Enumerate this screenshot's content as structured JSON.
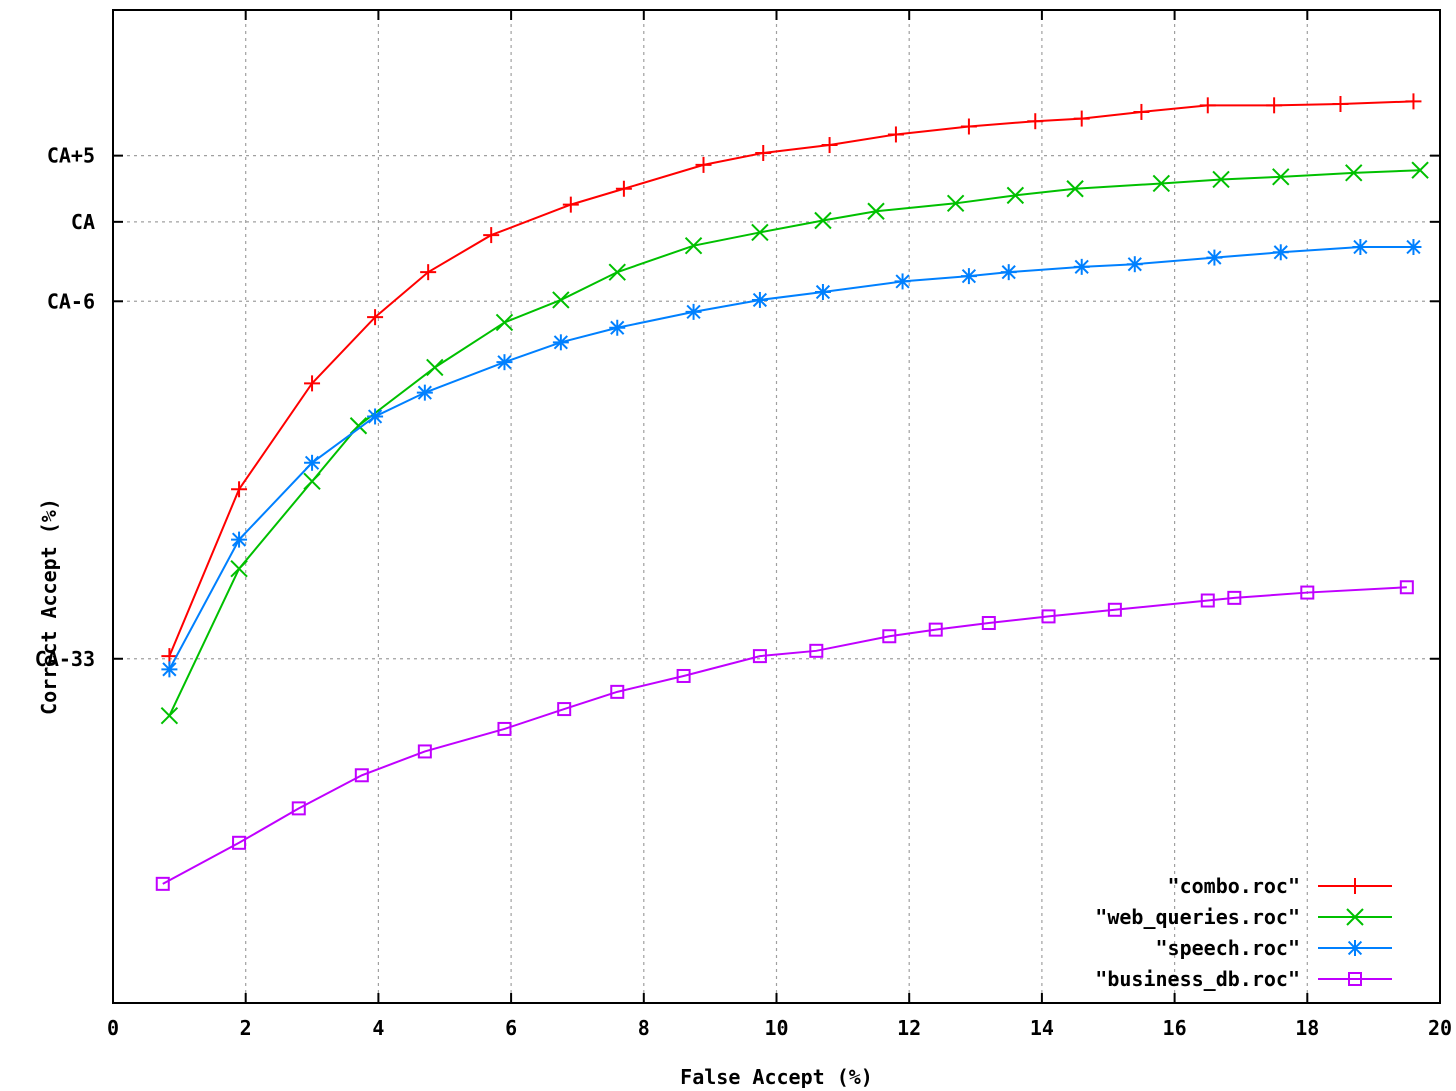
{
  "chart_data": {
    "type": "line",
    "title": "",
    "xlabel": "False Accept (%)",
    "ylabel": "Correct Accept (%)",
    "xlim": [
      0,
      20
    ],
    "x_ticks": [
      0,
      2,
      4,
      6,
      8,
      10,
      12,
      14,
      16,
      18,
      20
    ],
    "y_ticks": [
      {
        "value": -33,
        "label": "CA-33"
      },
      {
        "value": -6,
        "label": "CA-6"
      },
      {
        "value": 0,
        "label": "CA"
      },
      {
        "value": 5,
        "label": "CA+5"
      }
    ],
    "ylim": [
      -59,
      16
    ],
    "grid": true,
    "legend_position": "bottom-right",
    "series": [
      {
        "name": "\"combo.roc\"",
        "color": "#ff0000",
        "marker": "plus",
        "x": [
          0.85,
          1.9,
          3.0,
          3.95,
          4.75,
          5.7,
          6.9,
          7.7,
          8.9,
          9.8,
          10.8,
          11.8,
          12.9,
          13.9,
          14.6,
          15.5,
          16.5,
          17.5,
          18.5,
          19.6
        ],
        "y": [
          -32.8,
          -20.2,
          -12.2,
          -7.2,
          -3.8,
          -1.0,
          1.3,
          2.5,
          4.3,
          5.2,
          5.8,
          6.6,
          7.2,
          7.6,
          7.8,
          8.3,
          8.8,
          8.8,
          8.9,
          9.1
        ]
      },
      {
        "name": "\"web_queries.roc\"",
        "color": "#00c000",
        "marker": "cross",
        "x": [
          0.85,
          1.9,
          3.0,
          3.7,
          4.85,
          5.9,
          6.75,
          7.6,
          8.75,
          9.75,
          10.7,
          11.5,
          12.7,
          13.6,
          14.5,
          15.8,
          16.7,
          17.6,
          18.7,
          19.7
        ],
        "y": [
          -37.3,
          -26.2,
          -19.6,
          -15.4,
          -11.0,
          -7.6,
          -5.9,
          -3.8,
          -1.8,
          -0.8,
          0.1,
          0.8,
          1.4,
          2.0,
          2.5,
          2.9,
          3.2,
          3.4,
          3.7,
          3.9
        ]
      },
      {
        "name": "\"speech.roc\"",
        "color": "#0080ff",
        "marker": "star",
        "x": [
          0.85,
          1.9,
          3.0,
          3.95,
          4.7,
          5.9,
          6.75,
          7.6,
          8.75,
          9.75,
          10.7,
          11.9,
          12.9,
          13.5,
          14.6,
          15.4,
          16.6,
          17.6,
          18.8,
          19.6
        ],
        "y": [
          -33.8,
          -24.0,
          -18.2,
          -14.7,
          -12.9,
          -10.6,
          -9.1,
          -8.0,
          -6.8,
          -5.9,
          -5.3,
          -4.5,
          -4.1,
          -3.8,
          -3.4,
          -3.2,
          -2.7,
          -2.3,
          -1.9,
          -1.9
        ]
      },
      {
        "name": "\"business_db.roc\"",
        "color": "#c000ff",
        "marker": "square",
        "x": [
          0.75,
          1.9,
          2.8,
          3.75,
          4.7,
          5.9,
          6.8,
          7.6,
          8.6,
          9.75,
          10.6,
          11.7,
          12.4,
          13.2,
          14.1,
          15.1,
          16.5,
          16.9,
          18.0,
          19.5
        ],
        "y": [
          -50.0,
          -46.9,
          -44.3,
          -41.8,
          -40.0,
          -38.3,
          -36.8,
          -35.5,
          -34.3,
          -32.8,
          -32.4,
          -31.3,
          -30.8,
          -30.3,
          -29.8,
          -29.3,
          -28.6,
          -28.4,
          -28.0,
          -27.6
        ]
      }
    ]
  }
}
